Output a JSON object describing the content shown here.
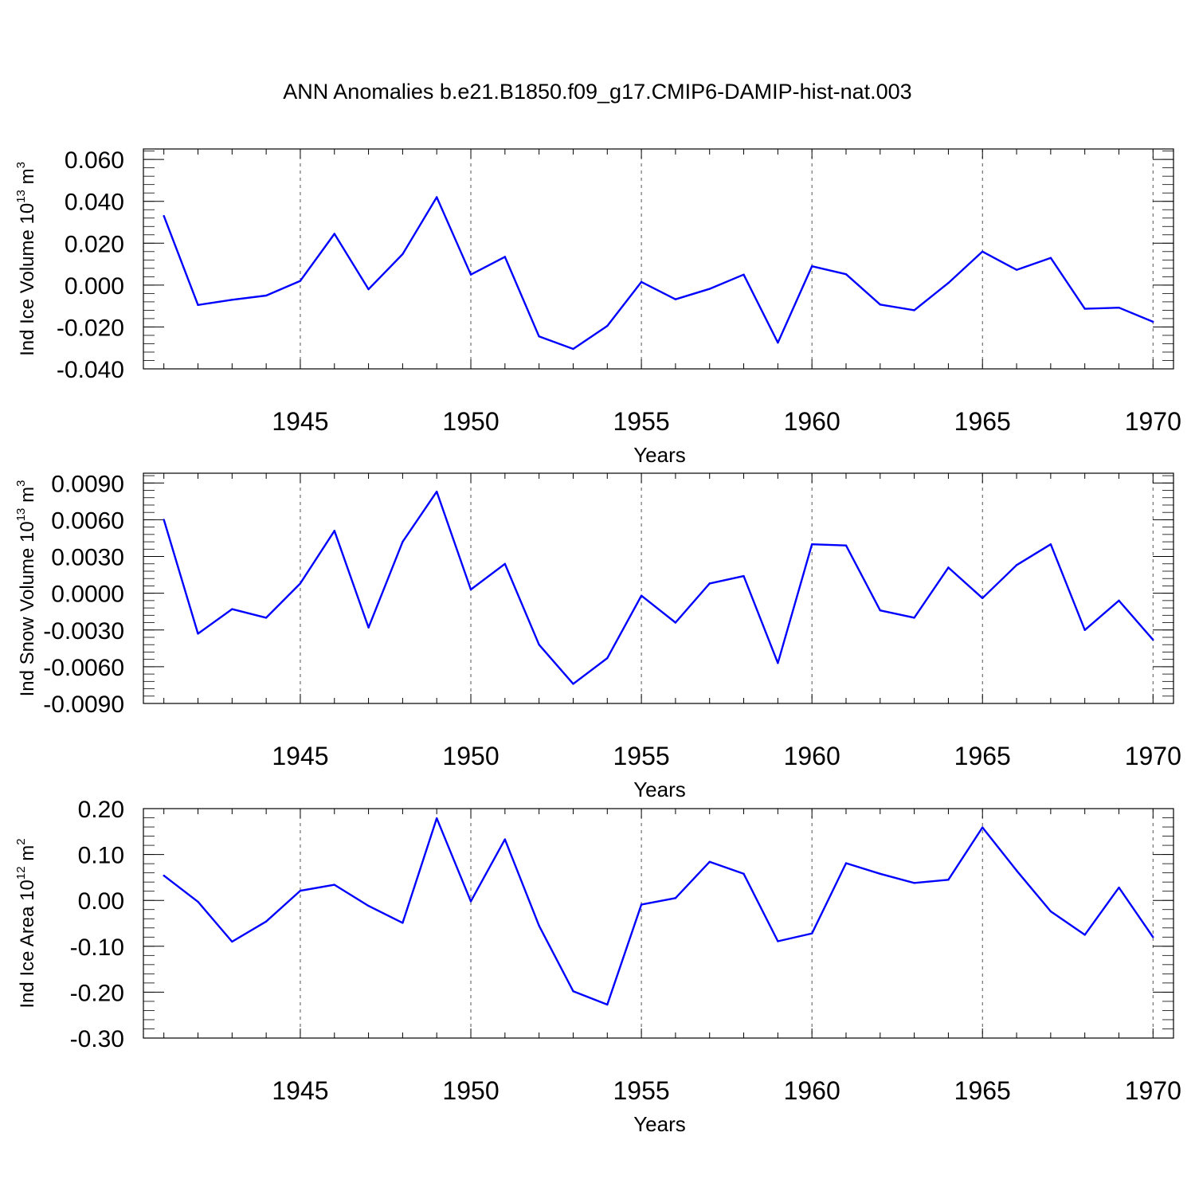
{
  "chart_data": [
    {
      "type": "line",
      "title": "ANN Anomalies b.e21.B1850.f09_g17.CMIP6-DAMIP-hist-nat.003",
      "ylabel": "Ind Ice Volume 10",
      "ylabel_exp": "13",
      "ylabel_unit": " m",
      "ylabel_unit_exp": "3",
      "xlabel": "Years",
      "xlim": [
        1940.4,
        1970.6
      ],
      "ylim": [
        -0.04,
        0.065
      ],
      "x_ticks": [
        "1945",
        "1950",
        "1955",
        "1960",
        "1965",
        "1970"
      ],
      "y_ticks": [
        "0.060",
        "0.040",
        "0.020",
        "0.000",
        "-0.020",
        "-0.040"
      ],
      "y_tick_values": [
        0.06,
        0.04,
        0.02,
        0.0,
        -0.02,
        -0.04
      ],
      "line_color": "#0000ff",
      "x": [
        1941,
        1942,
        1943,
        1944,
        1945,
        1946,
        1947,
        1948,
        1949,
        1950,
        1951,
        1952,
        1953,
        1954,
        1955,
        1956,
        1957,
        1958,
        1959,
        1960,
        1961,
        1962,
        1963,
        1964,
        1965,
        1966,
        1967,
        1968,
        1969,
        1970
      ],
      "values": [
        0.033,
        -0.0095,
        -0.007,
        -0.005,
        0.002,
        0.0245,
        -0.002,
        0.0148,
        0.042,
        0.005,
        0.0135,
        -0.0245,
        -0.0305,
        -0.0195,
        0.0015,
        -0.0068,
        -0.0018,
        0.005,
        -0.0275,
        0.009,
        0.0052,
        -0.0093,
        -0.012,
        0.001,
        0.016,
        0.0073,
        0.013,
        -0.0113,
        -0.0108,
        -0.0175
      ]
    },
    {
      "type": "line",
      "ylabel": "Ind Snow Volume 10",
      "ylabel_exp": "13",
      "ylabel_unit": " m",
      "ylabel_unit_exp": "3",
      "xlabel": "Years",
      "xlim": [
        1940.4,
        1970.6
      ],
      "ylim": [
        -0.009,
        0.0098
      ],
      "x_ticks": [
        "1945",
        "1950",
        "1955",
        "1960",
        "1965",
        "1970"
      ],
      "y_ticks": [
        "0.0090",
        "0.0060",
        "0.0030",
        "0.0000",
        "-0.0030",
        "-0.0060",
        "-0.0090"
      ],
      "y_tick_values": [
        0.009,
        0.006,
        0.003,
        0.0,
        -0.003,
        -0.006,
        -0.009
      ],
      "line_color": "#0000ff",
      "x": [
        1941,
        1942,
        1943,
        1944,
        1945,
        1946,
        1947,
        1948,
        1949,
        1950,
        1951,
        1952,
        1953,
        1954,
        1955,
        1956,
        1957,
        1958,
        1959,
        1960,
        1961,
        1962,
        1963,
        1964,
        1965,
        1966,
        1967,
        1968,
        1969,
        1970
      ],
      "values": [
        0.006,
        -0.0033,
        -0.0013,
        -0.002,
        0.0008,
        0.0051,
        -0.0028,
        0.0042,
        0.0083,
        0.0003,
        0.0024,
        -0.0042,
        -0.0074,
        -0.0053,
        -0.0002,
        -0.0024,
        0.0008,
        0.0014,
        -0.0057,
        0.004,
        0.0039,
        -0.0014,
        -0.002,
        0.0021,
        -0.0004,
        0.0023,
        0.004,
        -0.003,
        -0.0006,
        -0.0038
      ]
    },
    {
      "type": "line",
      "ylabel": "Ind Ice Area 10",
      "ylabel_exp": "12",
      "ylabel_unit": " m",
      "ylabel_unit_exp": "2",
      "xlabel": "Years",
      "xlim": [
        1940.4,
        1970.6
      ],
      "ylim": [
        -0.3,
        0.2
      ],
      "x_ticks": [
        "1945",
        "1950",
        "1955",
        "1960",
        "1965",
        "1970"
      ],
      "y_ticks": [
        "0.20",
        "0.10",
        "0.00",
        "-0.10",
        "-0.20",
        "-0.30"
      ],
      "y_tick_values": [
        0.2,
        0.1,
        0.0,
        -0.1,
        -0.2,
        -0.3
      ],
      "line_color": "#0000ff",
      "x": [
        1941,
        1942,
        1943,
        1944,
        1945,
        1946,
        1947,
        1948,
        1949,
        1950,
        1951,
        1952,
        1953,
        1954,
        1955,
        1956,
        1957,
        1958,
        1959,
        1960,
        1961,
        1962,
        1963,
        1964,
        1965,
        1966,
        1967,
        1968,
        1969,
        1970
      ],
      "values": [
        0.054,
        -0.003,
        -0.09,
        -0.046,
        0.021,
        0.034,
        -0.012,
        -0.049,
        0.179,
        -0.002,
        0.133,
        -0.055,
        -0.198,
        -0.227,
        -0.009,
        0.005,
        0.084,
        0.058,
        -0.089,
        -0.072,
        0.081,
        0.058,
        0.038,
        0.045,
        0.159,
        0.065,
        -0.024,
        -0.075,
        0.028,
        -0.08
      ]
    }
  ]
}
